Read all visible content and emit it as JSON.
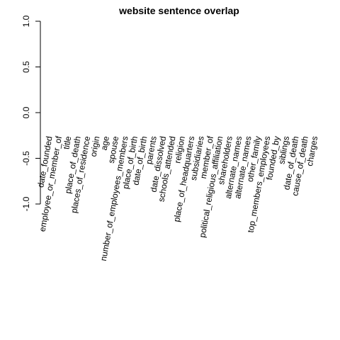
{
  "chart_data": {
    "type": "bar",
    "title": "website sentence overlap",
    "xlabel": "",
    "ylabel": "",
    "ylim": [
      -1.0,
      1.0
    ],
    "yticks": [
      -1.0,
      -0.5,
      0.0,
      0.5,
      1.0
    ],
    "ytick_labels": [
      "-1.0",
      "-0.5",
      "0.0",
      "0.5",
      "1.0"
    ],
    "grid": false,
    "categories": [
      "date_founded",
      "employee_or_member_of",
      "title",
      "place_of_death",
      "places_of_residence",
      "origin",
      "age",
      "spouse",
      "number_of_employees_members",
      "place_of_birth",
      "date_of_birth",
      "parents",
      "date_dissolved",
      "schools_attended",
      "religion",
      "place_of_headquarters",
      "subsidiaries",
      "member_of",
      "political_religious_affiliation",
      "shareholders",
      "alternate_names",
      "alternate_names",
      "other_family",
      "top_members_employees",
      "founded_by",
      "siblings",
      "date_of_death",
      "cause_of_death",
      "charges"
    ],
    "values": [
      0,
      0,
      0,
      0,
      0,
      0,
      0,
      0,
      0,
      0,
      0,
      0,
      0,
      0,
      0,
      0,
      0,
      0,
      0,
      0,
      0,
      0,
      0,
      0,
      0,
      0,
      0,
      0,
      0
    ]
  }
}
